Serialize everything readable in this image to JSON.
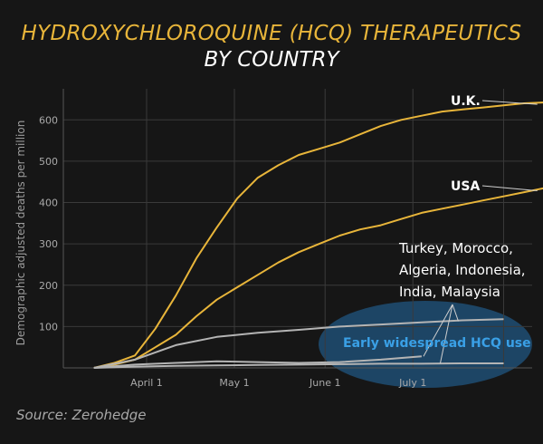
{
  "title": "HYDROXYCHLOROQUINE (HCQ) THERAPEUTICS",
  "subtitle": "BY COUNTRY",
  "source": "Source: Zerohedge",
  "colors": {
    "background": "#161616",
    "title": "#e8b53a",
    "hcq_lines": "#aaaaaa",
    "uk_usa_lines": "#e8b53a",
    "highlight": "#1e4a6e"
  },
  "chart_data": {
    "type": "line",
    "xlabel": "",
    "ylabel": "Demographic adjusted deaths per million",
    "x_ticks": [
      "April 1",
      "May 1",
      "June 1",
      "July 1"
    ],
    "x_ticks_day_offsets": [
      0,
      30,
      61,
      91
    ],
    "ylim": [
      0,
      650
    ],
    "y_ticks": [
      100,
      200,
      300,
      400,
      500,
      600
    ],
    "grid": true,
    "series": [
      {
        "name": "U.K.",
        "color": "#e8b53a",
        "x": [
          "2020-03-14",
          "2020-03-21",
          "2020-03-28",
          "2020-04-04",
          "2020-04-11",
          "2020-04-18",
          "2020-04-25",
          "2020-05-02",
          "2020-05-09",
          "2020-05-16",
          "2020-05-23",
          "2020-05-30",
          "2020-06-06",
          "2020-06-13",
          "2020-06-20",
          "2020-06-27",
          "2020-07-04",
          "2020-07-11",
          "2020-07-18",
          "2020-07-25",
          "2020-08-01",
          "2020-08-08",
          "2020-08-15"
        ],
        "values": [
          0,
          12,
          30,
          95,
          175,
          265,
          340,
          410,
          460,
          490,
          515,
          530,
          545,
          565,
          585,
          600,
          610,
          620,
          625,
          630,
          635,
          640,
          642
        ]
      },
      {
        "name": "USA",
        "color": "#e8b53a",
        "x": [
          "2020-03-14",
          "2020-03-21",
          "2020-03-28",
          "2020-04-04",
          "2020-04-11",
          "2020-04-18",
          "2020-04-25",
          "2020-05-02",
          "2020-05-09",
          "2020-05-16",
          "2020-05-23",
          "2020-05-30",
          "2020-06-06",
          "2020-06-13",
          "2020-06-20",
          "2020-06-27",
          "2020-07-04",
          "2020-07-11",
          "2020-07-18",
          "2020-07-25",
          "2020-08-01",
          "2020-08-08",
          "2020-08-15"
        ],
        "values": [
          0,
          8,
          20,
          50,
          80,
          125,
          165,
          195,
          225,
          255,
          280,
          300,
          320,
          335,
          345,
          360,
          375,
          385,
          395,
          405,
          415,
          425,
          435
        ]
      },
      {
        "name": "Turkey, Morocco, Algeria, Indonesia, India, Malaysia (upper)",
        "color": "#b4b4b4",
        "x": [
          "2020-03-14",
          "2020-03-28",
          "2020-04-11",
          "2020-04-25",
          "2020-05-09",
          "2020-05-23",
          "2020-06-06",
          "2020-06-20",
          "2020-07-04",
          "2020-07-18",
          "2020-08-01"
        ],
        "values": [
          0,
          20,
          55,
          75,
          85,
          92,
          100,
          105,
          110,
          115,
          118
        ]
      },
      {
        "name": "Turkey, Morocco, Algeria, Indonesia, India, Malaysia (middle)",
        "color": "#b4b4b4",
        "x": [
          "2020-03-14",
          "2020-03-28",
          "2020-04-11",
          "2020-04-25",
          "2020-05-09",
          "2020-05-23",
          "2020-06-06",
          "2020-06-20",
          "2020-07-04"
        ],
        "values": [
          0,
          8,
          12,
          16,
          14,
          12,
          14,
          20,
          28
        ]
      },
      {
        "name": "Turkey, Morocco, Algeria, Indonesia, India, Malaysia (lower)",
        "color": "#b4b4b4",
        "x": [
          "2020-03-14",
          "2020-03-28",
          "2020-04-11",
          "2020-04-25",
          "2020-05-09",
          "2020-05-23",
          "2020-06-06",
          "2020-06-20",
          "2020-07-04",
          "2020-07-18",
          "2020-08-01"
        ],
        "values": [
          0,
          3,
          5,
          6,
          7,
          8,
          9,
          10,
          10,
          11,
          11
        ]
      }
    ],
    "annotations": [
      {
        "text": "U.K.",
        "style": "bold"
      },
      {
        "text": "USA",
        "style": "bold"
      },
      {
        "lines": [
          "Turkey, Morocco,",
          "Algeria, Indonesia,",
          "India, Malaysia"
        ],
        "style": "normal"
      },
      {
        "text": "Early widespread HCQ use",
        "style": "highlight"
      }
    ]
  }
}
